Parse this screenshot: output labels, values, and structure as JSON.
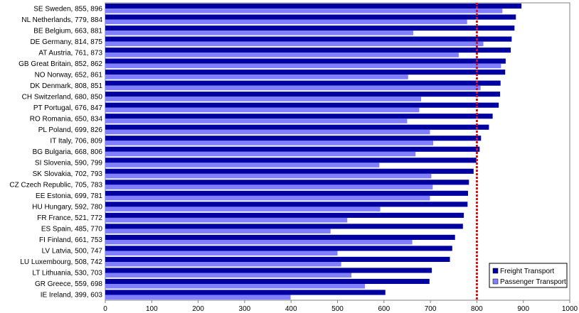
{
  "chart_data": {
    "type": "bar",
    "orientation": "horizontal",
    "categories": [
      "SE Sweden, 855, 896",
      "NL Netherlands, 779, 884",
      "BE Belgium, 663, 881",
      "DE Germany, 814, 875",
      "AT Austria, 761, 873",
      "GB Great Britain, 852, 862",
      "NO Norway, 652, 861",
      "DK Denmark, 808, 851",
      "CH Switzerland, 680, 850",
      "PT Portugal, 676, 847",
      "RO Romania, 650, 834",
      "PL Poland, 699, 826",
      "IT Italy, 706, 809",
      "BG Bulgaria, 668, 806",
      "SI Slovenia, 590, 799",
      "SK Slovakia, 702, 793",
      "CZ Czech Republic, 705, 783",
      "EE Estonia, 699, 781",
      "HU Hungary, 592, 780",
      "FR France, 521, 772",
      "ES Spain, 485, 770",
      "FI Finland, 661, 753",
      "LV Latvia, 500, 747",
      "LU Luxembourg, 508, 742",
      "LT Lithuania, 530, 703",
      "GR Greece, 559, 698",
      "IE Ireland, 399, 603"
    ],
    "series": [
      {
        "name": "Freight Transport",
        "color": "#0000a0",
        "values": [
          896,
          884,
          881,
          875,
          873,
          862,
          861,
          851,
          850,
          847,
          834,
          826,
          809,
          806,
          799,
          793,
          783,
          781,
          780,
          772,
          770,
          753,
          747,
          742,
          703,
          698,
          603
        ]
      },
      {
        "name": "Passenger Transport",
        "color": "#8080ff",
        "values": [
          855,
          779,
          663,
          814,
          761,
          852,
          652,
          808,
          680,
          676,
          650,
          699,
          706,
          668,
          590,
          702,
          705,
          699,
          592,
          521,
          485,
          661,
          500,
          508,
          530,
          559,
          399
        ]
      }
    ],
    "xlim": [
      0,
      1000
    ],
    "xticks": [
      0,
      100,
      200,
      300,
      400,
      500,
      600,
      700,
      800,
      900,
      1000
    ],
    "reference_line": {
      "value": 800,
      "color": "#ff0000",
      "style": "dashed"
    },
    "grid": false,
    "legend": "bottom-right"
  }
}
